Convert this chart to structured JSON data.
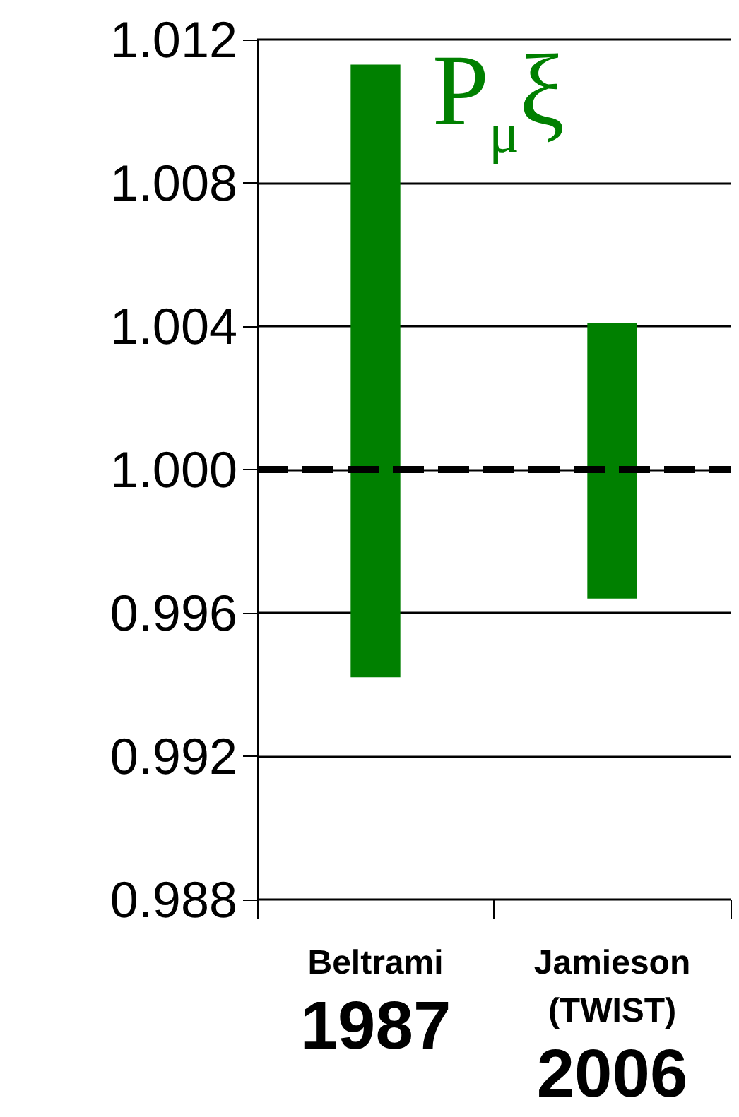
{
  "chart_data": {
    "type": "bar",
    "categories": [
      "Beltrami\n1987",
      "Jamieson\n(TWIST)\n2006"
    ],
    "values": [
      0.0171,
      0.0077
    ],
    "base": [
      0.9942,
      0.9964
    ],
    "color": "#008000",
    "ylim": [
      0.988,
      1.012
    ],
    "yticks": [
      0.988,
      0.992,
      0.996,
      {
        "value": 1.0,
        "label": "1.000"
      },
      1.004,
      1.008,
      1.012
    ],
    "grid": "y",
    "ref_lines": [
      {
        "axis": "y",
        "value": 1.0,
        "color": "#000000",
        "line_style": "dashed"
      }
    ],
    "annotations": [
      "P$_{μ}$ξ"
    ]
  }
}
